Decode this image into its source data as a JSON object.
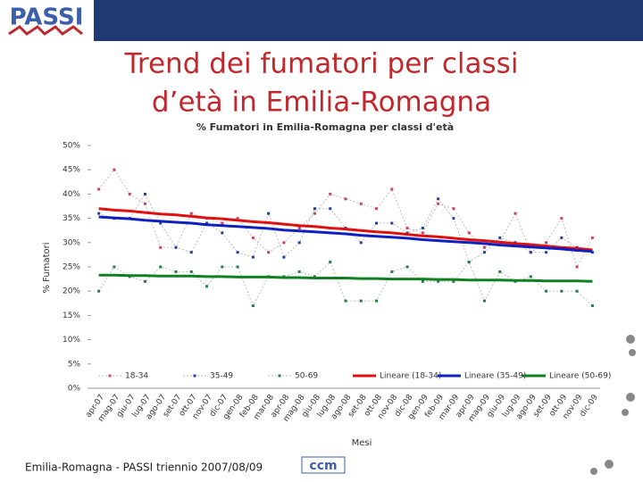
{
  "logo": "PASSI",
  "title_lines": [
    "Trend dei fumatori per classi",
    "d’età in Emilia-Romagna"
  ],
  "footer": "Emilia-Romagna - PASSI triennio 2007/08/09",
  "footer_logo": "ccm",
  "chart_data": {
    "type": "line",
    "title": "% Fumatori in Emilia-Romagna per classi d'età",
    "x_label": "Mesi",
    "y_label": "% Fumatori",
    "categories": [
      "apr-07",
      "mag-07",
      "giu-07",
      "lug-07",
      "ago-07",
      "set-07",
      "ott-07",
      "nov-07",
      "dic-07",
      "gen-08",
      "feb-08",
      "mar-08",
      "apr-08",
      "mag-08",
      "giu-08",
      "lug-08",
      "ago-08",
      "set-08",
      "ott-08",
      "nov-08",
      "dic-08",
      "gen-09",
      "feb-09",
      "mar-09",
      "apr-09",
      "mag-09",
      "giu-09",
      "lug-09",
      "ago-09",
      "set-09",
      "ott-09",
      "nov-09",
      "dic-09"
    ],
    "ylim": [
      0,
      50
    ],
    "yticks": [
      {
        "value": 0,
        "label": "0%"
      },
      {
        "value": 5,
        "label": "5%"
      },
      {
        "value": 10,
        "label": "10%"
      },
      {
        "value": 15,
        "label": "15%"
      },
      {
        "value": 20,
        "label": "20%"
      },
      {
        "value": 25,
        "label": "25%"
      },
      {
        "value": 30,
        "label": "30%"
      },
      {
        "value": 35,
        "label": "35%"
      },
      {
        "value": 40,
        "label": "40%"
      },
      {
        "value": 45,
        "label": "45%"
      },
      {
        "value": 50,
        "label": "50%"
      }
    ],
    "legend": "bottom",
    "series": [
      {
        "name": "18-34",
        "color": "#d04060",
        "style": "dotted",
        "values": [
          41,
          45,
          40,
          38,
          29,
          29,
          36,
          35,
          34,
          35,
          31,
          28,
          30,
          33,
          36,
          40,
          39,
          38,
          37,
          41,
          33,
          32,
          38,
          37,
          32,
          29,
          30,
          36,
          28,
          30,
          35,
          25,
          31
        ]
      },
      {
        "name": "35-49",
        "color": "#2040a0",
        "style": "dotted",
        "values": [
          36,
          35,
          35,
          40,
          34,
          29,
          28,
          34,
          32,
          28,
          27,
          36,
          27,
          30,
          37,
          37,
          33,
          30,
          34,
          34,
          32,
          33,
          39,
          35,
          26,
          28,
          31,
          30,
          28,
          28,
          31,
          29,
          28
        ]
      },
      {
        "name": "50-69",
        "color": "#208040",
        "style": "dotted",
        "values": [
          20,
          25,
          23,
          22,
          25,
          24,
          24,
          21,
          25,
          25,
          17,
          23,
          23,
          24,
          23,
          26,
          18,
          18,
          18,
          24,
          25,
          22,
          22,
          22,
          26,
          18,
          24,
          22,
          23,
          20,
          20,
          20,
          17
        ]
      },
      {
        "name": "Lineare (18-34)",
        "color": "#e01010",
        "style": "trend",
        "values": [
          37.0,
          36.7,
          36.5,
          36.2,
          35.9,
          35.7,
          35.4,
          35.1,
          34.9,
          34.6,
          34.3,
          34.1,
          33.8,
          33.5,
          33.3,
          33.0,
          32.8,
          32.5,
          32.2,
          32.0,
          31.7,
          31.4,
          31.2,
          30.9,
          30.6,
          30.4,
          30.1,
          29.8,
          29.6,
          29.3,
          29.0,
          28.8,
          28.5
        ]
      },
      {
        "name": "Lineare (35-49)",
        "color": "#1020c0",
        "style": "trend",
        "values": [
          35.3,
          35.1,
          34.9,
          34.6,
          34.4,
          34.2,
          34.0,
          33.7,
          33.5,
          33.3,
          33.1,
          32.9,
          32.6,
          32.4,
          32.2,
          32.0,
          31.8,
          31.5,
          31.3,
          31.1,
          30.9,
          30.6,
          30.4,
          30.2,
          30.0,
          29.8,
          29.5,
          29.3,
          29.1,
          28.9,
          28.7,
          28.4,
          28.2
        ]
      },
      {
        "name": "Lineare (50-69)",
        "color": "#108020",
        "style": "trend",
        "values": [
          23.3,
          23.3,
          23.2,
          23.2,
          23.1,
          23.1,
          23.1,
          23.0,
          23.0,
          22.9,
          22.9,
          22.9,
          22.8,
          22.8,
          22.7,
          22.7,
          22.7,
          22.6,
          22.6,
          22.5,
          22.5,
          22.5,
          22.4,
          22.4,
          22.3,
          22.3,
          22.3,
          22.2,
          22.2,
          22.1,
          22.1,
          22.1,
          22.0
        ]
      }
    ]
  }
}
